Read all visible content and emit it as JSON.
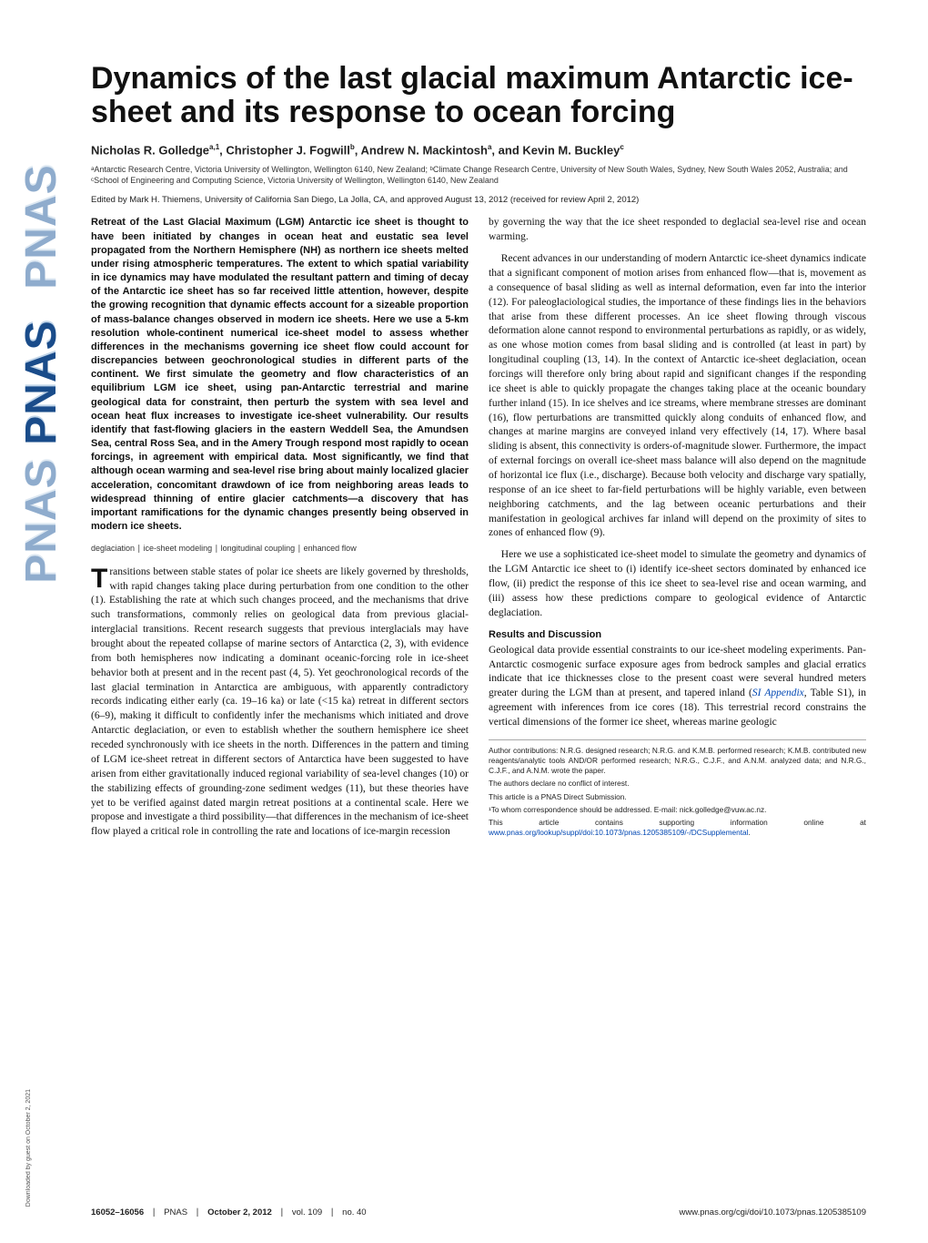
{
  "sidebar": {
    "text": "PNAS"
  },
  "download_note": "Downloaded by guest on October 2, 2021",
  "title": "Dynamics of the last glacial maximum Antarctic ice-sheet and its response to ocean forcing",
  "authors_html": "Nicholas R. Golledge",
  "authors": [
    {
      "name": "Nicholas R. Golledge",
      "marks": "a,1"
    },
    {
      "name": "Christopher J. Fogwill",
      "marks": "b"
    },
    {
      "name": "Andrew N. Mackintosh",
      "marks": "a"
    },
    {
      "name": "Kevin M. Buckley",
      "marks": "c"
    }
  ],
  "affiliations": "ᵃAntarctic Research Centre, Victoria University of Wellington, Wellington 6140, New Zealand; ᵇClimate Change Research Centre, University of New South Wales, Sydney, New South Wales 2052, Australia; and ᶜSchool of Engineering and Computing Science, Victoria University of Wellington, Wellington 6140, New Zealand",
  "edited": "Edited by Mark H. Thiemens, University of California San Diego, La Jolla, CA, and approved August 13, 2012 (received for review April 2, 2012)",
  "abstract": "Retreat of the Last Glacial Maximum (LGM) Antarctic ice sheet is thought to have been initiated by changes in ocean heat and eustatic sea level propagated from the Northern Hemisphere (NH) as northern ice sheets melted under rising atmospheric temperatures. The extent to which spatial variability in ice dynamics may have modulated the resultant pattern and timing of decay of the Antarctic ice sheet has so far received little attention, however, despite the growing recognition that dynamic effects account for a sizeable proportion of mass-balance changes observed in modern ice sheets. Here we use a 5-km resolution whole-continent numerical ice-sheet model to assess whether differences in the mechanisms governing ice sheet flow could account for discrepancies between geochronological studies in different parts of the continent. We first simulate the geometry and flow characteristics of an equilibrium LGM ice sheet, using pan-Antarctic terrestrial and marine geological data for constraint, then perturb the system with sea level and ocean heat flux increases to investigate ice-sheet vulnerability. Our results identify that fast-flowing glaciers in the eastern Weddell Sea, the Amundsen Sea, central Ross Sea, and in the Amery Trough respond most rapidly to ocean forcings, in agreement with empirical data. Most significantly, we find that although ocean warming and sea-level rise bring about mainly localized glacier acceleration, concomitant drawdown of ice from neighboring areas leads to widespread thinning of entire glacier catchments—a discovery that has important ramifications for the dynamic changes presently being observed in modern ice sheets.",
  "keywords": "deglaciation ∣ ice-sheet modeling ∣ longitudinal coupling ∣ enhanced flow",
  "body": {
    "p1_first": "T",
    "p1_rest": "ransitions between stable states of polar ice sheets are likely governed by thresholds, with rapid changes taking place during perturbation from one condition to the other (1). Establishing the rate at which such changes proceed, and the mechanisms that drive such transformations, commonly relies on geological data from previous glacial-interglacial transitions. Recent research suggests that previous interglacials may have brought about the repeated collapse of marine sectors of Antarctica (2, 3), with evidence from both hemispheres now indicating a dominant oceanic-forcing role in ice-sheet behavior both at present and in the recent past (4, 5). Yet geochronological records of the last glacial termination in Antarctica are ambiguous, with apparently contradictory records indicating either early (ca. 19–16 ka) or late (<15 ka) retreat in different sectors (6–9), making it difficult to confidently infer the mechanisms which initiated and drove Antarctic deglaciation, or even to establish whether the southern hemisphere ice sheet receded synchronously with ice sheets in the north. Differences in the pattern and timing of LGM ice-sheet retreat in different sectors of Antarctica have been suggested to have arisen from either gravitationally induced regional variability of sea-level changes (10) or the stabilizing effects of grounding-zone sediment wedges (11), but these theories have yet to be verified against dated margin retreat positions at a continental scale. Here we propose and investigate a third possibility—that differences in the mechanism of ice-sheet flow played a critical role in controlling the rate and locations of ice-margin recession",
    "p2": "by governing the way that the ice sheet responded to deglacial sea-level rise and ocean warming.",
    "p3": "Recent advances in our understanding of modern Antarctic ice-sheet dynamics indicate that a significant component of motion arises from enhanced flow—that is, movement as a consequence of basal sliding as well as internal deformation, even far into the interior (12). For paleoglaciological studies, the importance of these findings lies in the behaviors that arise from these different processes. An ice sheet flowing through viscous deformation alone cannot respond to environmental perturbations as rapidly, or as widely, as one whose motion comes from basal sliding and is controlled (at least in part) by longitudinal coupling (13, 14). In the context of Antarctic ice-sheet deglaciation, ocean forcings will therefore only bring about rapid and significant changes if the responding ice sheet is able to quickly propagate the changes taking place at the oceanic boundary further inland (15). In ice shelves and ice streams, where membrane stresses are dominant (16), flow perturbations are transmitted quickly along conduits of enhanced flow, and changes at marine margins are conveyed inland very effectively (14, 17). Where basal sliding is absent, this connectivity is orders-of-magnitude slower. Furthermore, the impact of external forcings on overall ice-sheet mass balance will also depend on the magnitude of horizontal ice flux (i.e., discharge). Because both velocity and discharge vary spatially, response of an ice sheet to far-field perturbations will be highly variable, even between neighboring catchments, and the lag between oceanic perturbations and their manifestation in geological archives far inland will depend on the proximity of sites to zones of enhanced flow (9).",
    "p4": "Here we use a sophisticated ice-sheet model to simulate the geometry and dynamics of the LGM Antarctic ice sheet to (i) identify ice-sheet sectors dominated by enhanced ice flow, (ii) predict the response of this ice sheet to sea-level rise and ocean warming, and (iii) assess how these predictions compare to geological evidence of Antarctic deglaciation.",
    "section_head": "Results and Discussion",
    "p5a": "Geological data provide essential constraints to our ice-sheet modeling experiments. Pan-Antarctic cosmogenic surface exposure ages from bedrock samples and glacial erratics indicate that ice thicknesses close to the present coast were several hundred meters greater during the LGM than at present, and tapered inland (",
    "si_link": "SI Appendix",
    "si_after": ", Table S1",
    "p5b": "), in agreement with inferences from ice cores (18). This terrestrial record constrains the vertical dimensions of the former ice sheet, whereas marine geologic"
  },
  "footnotes": {
    "contrib": "Author contributions: N.R.G. designed research; N.R.G. and K.M.B. performed research; K.M.B. contributed new reagents/analytic tools AND/OR performed research; N.R.G., C.J.F., and A.N.M. analyzed data; and N.R.G., C.J.F., and A.N.M. wrote the paper.",
    "conflict": "The authors declare no conflict of interest.",
    "direct": "This article is a PNAS Direct Submission.",
    "corr_label": "¹To whom correspondence should be addressed. E-mail: ",
    "corr_email": "nick.golledge@vuw.ac.nz",
    "supp_a": "This article contains supporting information online at ",
    "supp_link": "www.pnas.org/lookup/suppl/doi:10.1073/pnas.1205385109/-/DCSupplemental",
    "supp_b": "."
  },
  "footer": {
    "pages": "16052–16056",
    "journal": "PNAS",
    "date": "October 2, 2012",
    "vol": "vol. 109",
    "issue": "no. 40",
    "doi": "www.pnas.org/cgi/doi/10.1073/pnas.1205385109"
  },
  "colors": {
    "link": "#0047b3",
    "pnas_dark": "#1a4c8a",
    "pnas_light": "#8faccd"
  },
  "typography": {
    "title_fontsize_pt": 26,
    "body_fontsize_pt": 9,
    "abstract_fontsize_pt": 8.5,
    "footnote_fontsize_pt": 6.5
  }
}
